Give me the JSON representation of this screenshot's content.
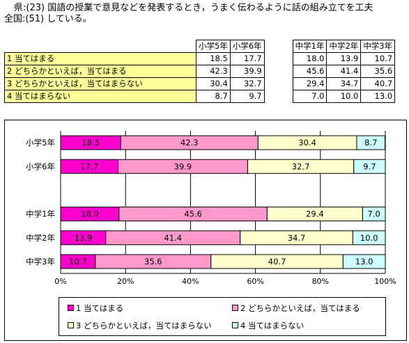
{
  "question": {
    "line1": "県:(23) 国語の授業で意見などを発表するとき，うまく伝わるように話の組み立てを工夫",
    "line2": "全国:(51) している。"
  },
  "table": {
    "headers_left": [
      "小学5年",
      "小学6年"
    ],
    "headers_right": [
      "中学1年",
      "中学2年",
      "中学3年"
    ],
    "rows": [
      {
        "label": "1  当てはまる",
        "left": [
          "18.5",
          "17.7"
        ],
        "right": [
          "18.0",
          "13.9",
          "10.7"
        ]
      },
      {
        "label": "2  どちらかといえば，当てはまる",
        "left": [
          "42.3",
          "39.9"
        ],
        "right": [
          "45.6",
          "41.4",
          "35.6"
        ]
      },
      {
        "label": "3  どちらかといえば，当てはまらない",
        "left": [
          "30.4",
          "32.7"
        ],
        "right": [
          "29.4",
          "34.7",
          "40.7"
        ]
      },
      {
        "label": "4  当てはまらない",
        "left": [
          "8.7",
          "9.7"
        ],
        "right": [
          "7.0",
          "10.0",
          "13.0"
        ]
      }
    ]
  },
  "chart_data": {
    "type": "bar",
    "stacked": true,
    "orientation": "horizontal",
    "categories": [
      "小学5年",
      "小学6年",
      "",
      "中学1年",
      "中学2年",
      "中学3年"
    ],
    "series": [
      {
        "name": "1  当てはまる",
        "color": "#ff00cc",
        "values": [
          18.5,
          17.7,
          null,
          18.0,
          13.9,
          10.7
        ]
      },
      {
        "name": "2  どちらかといえば，当てはまる",
        "color": "#ff99cc",
        "values": [
          42.3,
          39.9,
          null,
          45.6,
          41.4,
          35.6
        ]
      },
      {
        "name": "3  どちらかといえば，当てはまらない",
        "color": "#ffffcc",
        "values": [
          30.4,
          32.7,
          null,
          29.4,
          34.7,
          40.7
        ]
      },
      {
        "name": "4  当てはまらない",
        "color": "#ccffff",
        "values": [
          8.7,
          9.7,
          null,
          7.0,
          10.0,
          13.0
        ]
      }
    ],
    "xlim": [
      0,
      100
    ],
    "xticks": [
      "0%",
      "20%",
      "40%",
      "60%",
      "80%",
      "100%"
    ],
    "grid": true,
    "legend_position": "bottom"
  }
}
